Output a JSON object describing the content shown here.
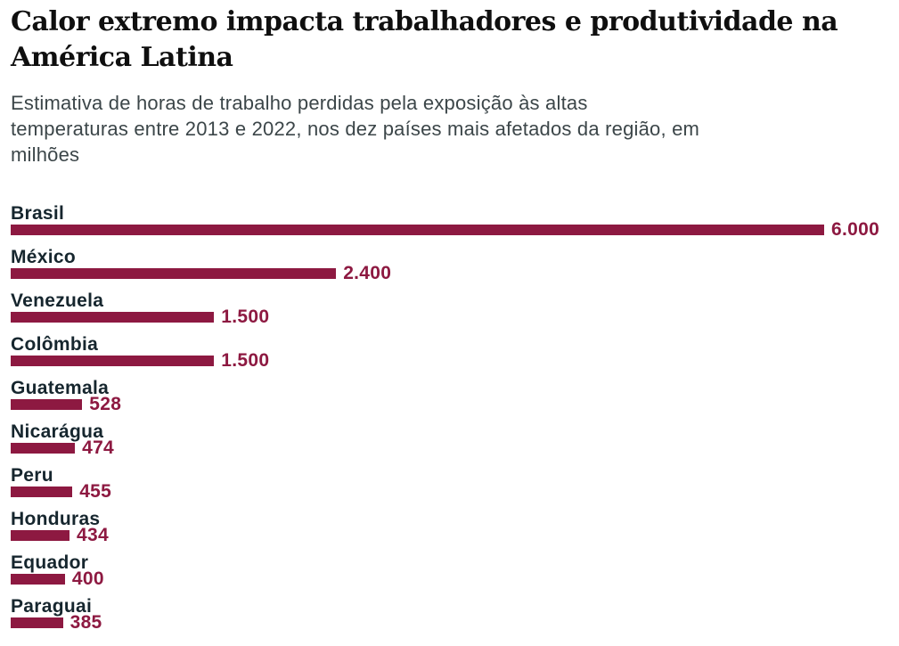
{
  "header": {
    "title_lines": [
      "Calor extremo impacta trabalhadores e produtividade na",
      "América Latina"
    ],
    "subtitle_lines": [
      "Estimativa de horas de trabalho perdidas pela exposição às altas",
      "temperaturas entre 2013 e 2022, nos dez países mais afetados da região, em",
      "milhões"
    ]
  },
  "chart_data": {
    "type": "bar",
    "orientation": "horizontal",
    "title": "Calor extremo impacta trabalhadores e produtividade na América Latina",
    "subtitle": "Estimativa de horas de trabalho perdidas pela exposição às altas temperaturas entre 2013 e 2022, nos dez países mais afetados da região, em milhões",
    "unit": "milhões",
    "categories": [
      "Brasil",
      "México",
      "Venezuela",
      "Colômbia",
      "Guatemala",
      "Nicarágua",
      "Peru",
      "Honduras",
      "Equador",
      "Paraguai"
    ],
    "values": [
      6000,
      2400,
      1500,
      1500,
      528,
      474,
      455,
      434,
      400,
      385
    ],
    "value_labels": [
      "6.000",
      "2.400",
      "1.500",
      "1.500",
      "528",
      "474",
      "455",
      "434",
      "400",
      "385"
    ],
    "xlim": [
      0,
      6000
    ],
    "grid": false,
    "legend": false,
    "colors": {
      "bar": "#8d1941",
      "value_label": "#8d1941",
      "category_label": "#16262e",
      "title": "#0f0f0f",
      "subtitle": "#3c4649",
      "background": "#ffffff"
    }
  }
}
